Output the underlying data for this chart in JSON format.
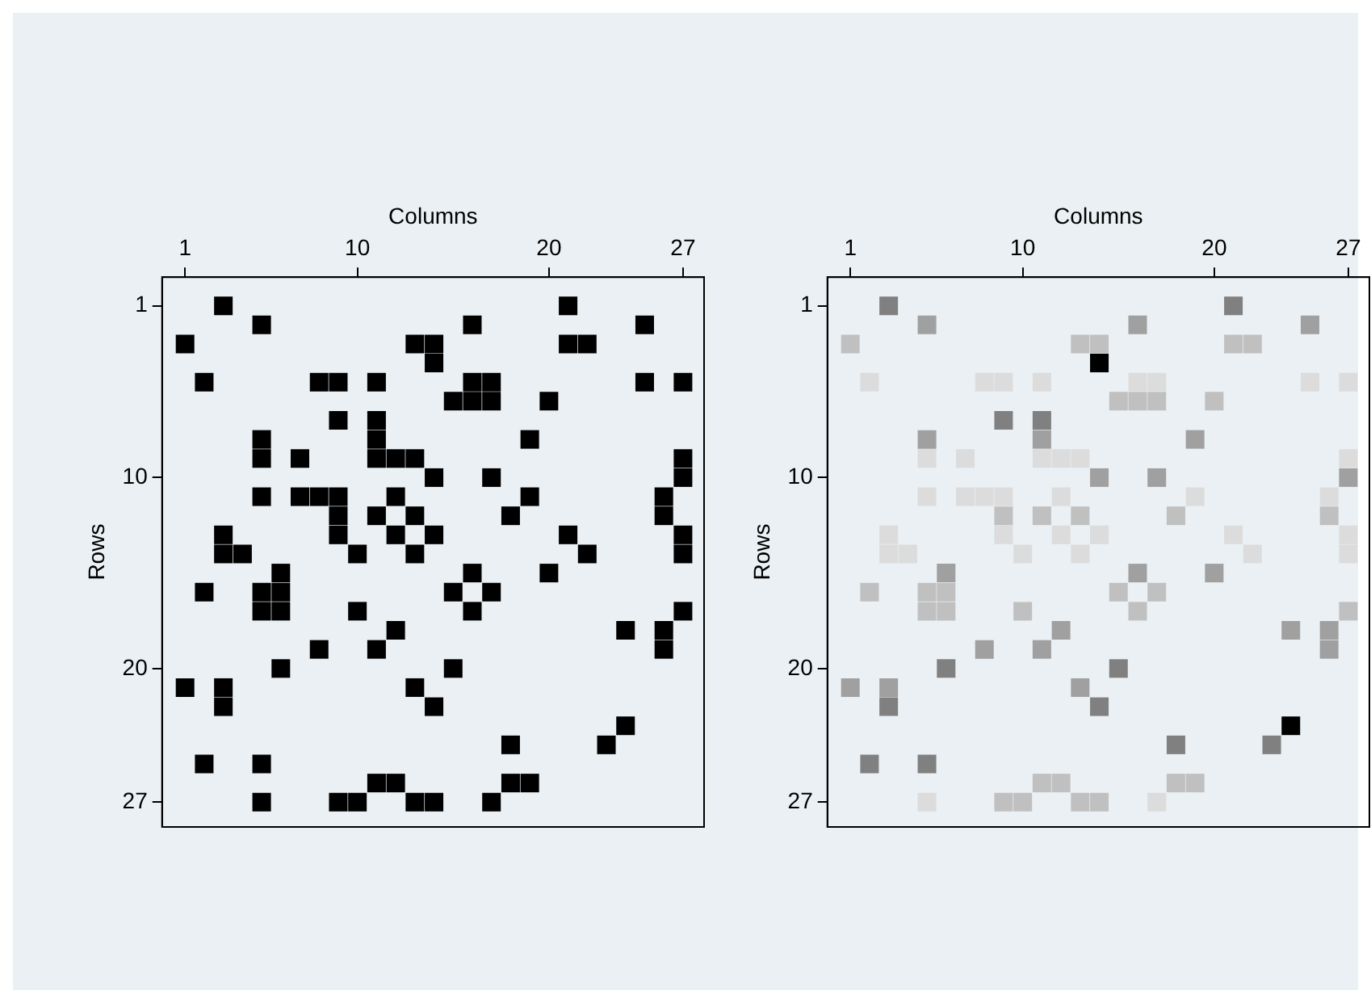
{
  "chart_data": [
    {
      "type": "scatter",
      "xlabel": "Columns",
      "ylabel": "Rows",
      "xlim": [
        -0.2,
        28.1
      ],
      "ylim": [
        28.3,
        -0.5
      ],
      "xticks": [
        1,
        10,
        20,
        27
      ],
      "yticks": [
        1,
        10,
        20,
        27
      ],
      "grid": false,
      "legend": false,
      "marker": "square",
      "series": [
        {
          "color": "#000000",
          "x": [
            3,
            21,
            5,
            16,
            25,
            1,
            13,
            14,
            21,
            22,
            14,
            2,
            8,
            9,
            11,
            16,
            17,
            25,
            27,
            15,
            16,
            17,
            20,
            9,
            11,
            5,
            11,
            19,
            5,
            7,
            11,
            12,
            13,
            27,
            14,
            17,
            27,
            5,
            7,
            8,
            9,
            12,
            19,
            26,
            9,
            11,
            13,
            18,
            26,
            3,
            9,
            12,
            14,
            21,
            27,
            3,
            4,
            10,
            13,
            22,
            27,
            6,
            16,
            20,
            2,
            5,
            6,
            15,
            17,
            5,
            6,
            10,
            16,
            27,
            12,
            24,
            26,
            8,
            11,
            26,
            6,
            15,
            1,
            3,
            13,
            3,
            14,
            24,
            18,
            23,
            2,
            5,
            11,
            12,
            18,
            19,
            5,
            9,
            10,
            13,
            14,
            17
          ],
          "values": [
            1,
            1,
            2,
            2,
            2,
            3,
            3,
            3,
            3,
            3,
            4,
            5,
            5,
            5,
            5,
            5,
            5,
            5,
            5,
            6,
            6,
            6,
            6,
            7,
            7,
            8,
            8,
            8,
            9,
            9,
            9,
            9,
            9,
            9,
            10,
            10,
            10,
            11,
            11,
            11,
            11,
            11,
            11,
            11,
            12,
            12,
            12,
            12,
            12,
            13,
            13,
            13,
            13,
            13,
            13,
            14,
            14,
            14,
            14,
            14,
            14,
            15,
            15,
            15,
            16,
            16,
            16,
            16,
            16,
            17,
            17,
            17,
            17,
            17,
            18,
            18,
            18,
            19,
            19,
            19,
            20,
            20,
            21,
            21,
            21,
            22,
            22,
            23,
            24,
            24,
            25,
            25,
            26,
            26,
            26,
            26,
            27,
            27,
            27,
            27,
            27,
            27
          ]
        }
      ]
    },
    {
      "type": "scatter",
      "xlabel": "Columns",
      "ylabel": "Rows",
      "xlim": [
        -0.2,
        28.1
      ],
      "ylim": [
        28.3,
        -0.5
      ],
      "xticks": [
        1,
        10,
        20,
        27
      ],
      "yticks": [
        1,
        10,
        20,
        27
      ],
      "grid": false,
      "legend": false,
      "marker": "square",
      "series": [
        {
          "color": "#000000",
          "x": [
            14,
            24
          ],
          "values": [
            4,
            23
          ]
        },
        {
          "color": "#808080",
          "x": [
            3,
            21,
            9,
            11,
            6,
            15,
            3,
            14,
            18,
            23,
            2,
            5
          ],
          "values": [
            1,
            1,
            7,
            7,
            20,
            20,
            22,
            22,
            24,
            24,
            25,
            25
          ]
        },
        {
          "color": "#a0a0a0",
          "x": [
            5,
            16,
            25,
            5,
            11,
            19,
            14,
            17,
            27,
            6,
            16,
            20,
            12,
            24,
            26,
            8,
            11,
            26,
            1,
            3,
            13
          ],
          "values": [
            2,
            2,
            2,
            8,
            8,
            8,
            10,
            10,
            10,
            15,
            15,
            15,
            18,
            18,
            18,
            19,
            19,
            19,
            21,
            21,
            21
          ]
        },
        {
          "color": "#c0c0c0",
          "x": [
            1,
            13,
            14,
            21,
            22,
            15,
            16,
            17,
            20,
            9,
            11,
            13,
            18,
            26,
            2,
            5,
            6,
            15,
            17,
            5,
            6,
            10,
            16,
            27,
            11,
            12,
            18,
            19,
            9,
            10,
            13,
            14
          ],
          "values": [
            3,
            3,
            3,
            3,
            3,
            6,
            6,
            6,
            6,
            12,
            12,
            12,
            12,
            12,
            16,
            16,
            16,
            16,
            16,
            17,
            17,
            17,
            17,
            17,
            26,
            26,
            26,
            26,
            27,
            27,
            27,
            27
          ]
        },
        {
          "color": "#dcdcdc",
          "x": [
            2,
            8,
            9,
            11,
            16,
            17,
            25,
            27,
            5,
            7,
            11,
            12,
            13,
            27,
            5,
            7,
            8,
            9,
            12,
            19,
            26,
            3,
            9,
            12,
            14,
            21,
            27,
            3,
            4,
            10,
            13,
            22,
            27,
            5,
            17
          ],
          "values": [
            5,
            5,
            5,
            5,
            5,
            5,
            5,
            5,
            9,
            9,
            9,
            9,
            9,
            9,
            11,
            11,
            11,
            11,
            11,
            11,
            11,
            13,
            13,
            13,
            13,
            13,
            13,
            14,
            14,
            14,
            14,
            14,
            14,
            27,
            27
          ]
        }
      ]
    }
  ]
}
